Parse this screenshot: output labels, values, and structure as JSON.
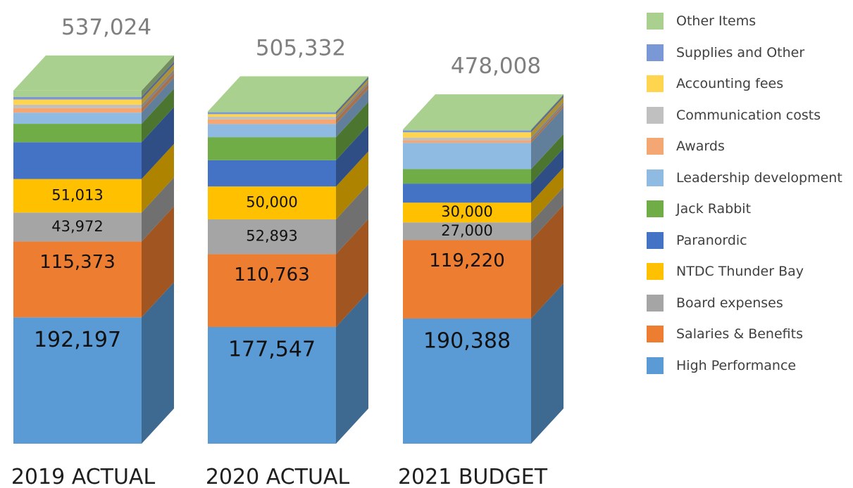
{
  "chart_data": {
    "type": "bar",
    "stacked": true,
    "three_d": true,
    "categories": [
      "2019 ACTUAL",
      "2020 ACTUAL",
      "2021 BUDGET"
    ],
    "totals": [
      "537,024",
      "505,332",
      "478,008"
    ],
    "total_values": [
      537024,
      505332,
      478008
    ],
    "legend_position": "right",
    "series": [
      {
        "name": "High Performance",
        "color": "#5B9BD5",
        "values": [
          192197,
          177547,
          190388
        ],
        "labels": [
          "192,197",
          "177,547",
          "190,388"
        ]
      },
      {
        "name": "Salaries & Benefits",
        "color": "#ED7D31",
        "values": [
          115373,
          110763,
          119220
        ],
        "labels": [
          "115,373",
          "110,763",
          "119,220"
        ]
      },
      {
        "name": "Board expenses",
        "color": "#A5A5A5",
        "values": [
          43972,
          52893,
          27000
        ],
        "labels": [
          "43,972",
          "52,893",
          "27,000"
        ]
      },
      {
        "name": "NTDC Thunder Bay",
        "color": "#FFC000",
        "values": [
          51013,
          50000,
          30000
        ],
        "labels": [
          "51,013",
          "50,000",
          "30,000"
        ]
      },
      {
        "name": "Paranordic",
        "color": "#4472C4",
        "values": [
          56000,
          40000,
          29000
        ],
        "labels": [
          "",
          "",
          ""
        ]
      },
      {
        "name": "Jack Rabbit",
        "color": "#70AD47",
        "values": [
          28000,
          35000,
          22000
        ],
        "labels": [
          "",
          "",
          ""
        ]
      },
      {
        "name": "Leadership development",
        "color": "#8FBBE3",
        "values": [
          17000,
          20000,
          40000
        ],
        "labels": [
          "",
          "",
          ""
        ]
      },
      {
        "name": "Awards",
        "color": "#F4A772",
        "values": [
          7000,
          7000,
          4000
        ],
        "labels": [
          "",
          "",
          ""
        ]
      },
      {
        "name": "Communication costs",
        "color": "#C0C0C0",
        "values": [
          5000,
          4000,
          4000
        ],
        "labels": [
          "",
          "",
          ""
        ]
      },
      {
        "name": "Accounting fees",
        "color": "#FFD54F",
        "values": [
          8000,
          4000,
          8000
        ],
        "labels": [
          "",
          "",
          ""
        ]
      },
      {
        "name": "Supplies and Other",
        "color": "#7B98D6",
        "values": [
          4000,
          3000,
          3000
        ],
        "labels": [
          "",
          "",
          ""
        ]
      },
      {
        "name": "Other Items",
        "color": "#A9D08E",
        "values": [
          9469,
          1129,
          1400
        ],
        "labels": [
          "",
          "",
          ""
        ]
      }
    ]
  },
  "legend": {
    "items": [
      {
        "label": "Other Items",
        "color": "#A9D08E"
      },
      {
        "label": "Supplies and Other",
        "color": "#7B98D6"
      },
      {
        "label": "Accounting fees",
        "color": "#FFD54F"
      },
      {
        "label": "Communication costs",
        "color": "#C0C0C0"
      },
      {
        "label": "Awards",
        "color": "#F4A772"
      },
      {
        "label": "Leadership development",
        "color": "#8FBBE3"
      },
      {
        "label": "Jack Rabbit",
        "color": "#70AD47"
      },
      {
        "label": "Paranordic",
        "color": "#4472C4"
      },
      {
        "label": "NTDC Thunder Bay",
        "color": "#FFC000"
      },
      {
        "label": "Board expenses",
        "color": "#A5A5A5"
      },
      {
        "label": "Salaries & Benefits",
        "color": "#ED7D31"
      },
      {
        "label": "High Performance",
        "color": "#5B9BD5"
      }
    ]
  }
}
